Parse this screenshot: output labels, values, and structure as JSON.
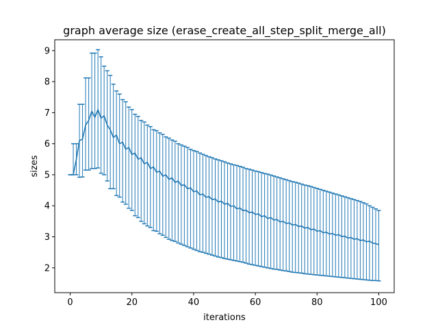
{
  "chart_data": {
    "type": "line",
    "title": "graph average size (erase_create_all_step_split_merge_all)",
    "xlabel": "iterations",
    "ylabel": "sizes",
    "xlim": [
      -5,
      105
    ],
    "ylim": [
      1.2,
      9.35
    ],
    "xticks": [
      0,
      20,
      40,
      60,
      80,
      100
    ],
    "yticks": [
      2,
      3,
      4,
      5,
      6,
      7,
      8,
      9
    ],
    "grid": false,
    "legend": "none",
    "line_color": "#1f77b4",
    "error_bars": "min-max",
    "x": [
      0,
      1,
      2,
      3,
      4,
      5,
      6,
      7,
      8,
      9,
      10,
      11,
      12,
      13,
      14,
      15,
      16,
      17,
      18,
      19,
      20,
      21,
      22,
      23,
      24,
      25,
      26,
      27,
      28,
      29,
      30,
      31,
      32,
      33,
      34,
      35,
      36,
      37,
      38,
      39,
      40,
      41,
      42,
      43,
      44,
      45,
      46,
      47,
      48,
      49,
      50,
      51,
      52,
      53,
      54,
      55,
      56,
      57,
      58,
      59,
      60,
      61,
      62,
      63,
      64,
      65,
      66,
      67,
      68,
      69,
      70,
      71,
      72,
      73,
      74,
      75,
      76,
      77,
      78,
      79,
      80,
      81,
      82,
      83,
      84,
      85,
      86,
      87,
      88,
      89,
      90,
      91,
      92,
      93,
      94,
      95,
      96,
      97,
      98,
      99,
      100
    ],
    "mean": [
      5.0,
      5.0,
      5.5,
      6.1,
      6.15,
      6.6,
      6.75,
      7.05,
      6.85,
      7.1,
      6.82,
      6.9,
      6.6,
      6.45,
      6.2,
      6.28,
      6.0,
      6.05,
      5.82,
      5.88,
      5.65,
      5.7,
      5.5,
      5.55,
      5.35,
      5.4,
      5.2,
      5.25,
      5.08,
      5.12,
      4.95,
      5.0,
      4.85,
      4.9,
      4.75,
      4.8,
      4.65,
      4.68,
      4.55,
      4.58,
      4.45,
      4.48,
      4.35,
      4.38,
      4.27,
      4.3,
      4.2,
      4.22,
      4.12,
      4.15,
      4.05,
      4.08,
      3.98,
      4.0,
      3.9,
      3.93,
      3.84,
      3.86,
      3.78,
      3.8,
      3.72,
      3.74,
      3.65,
      3.68,
      3.59,
      3.62,
      3.54,
      3.56,
      3.48,
      3.5,
      3.43,
      3.45,
      3.38,
      3.4,
      3.33,
      3.35,
      3.28,
      3.3,
      3.23,
      3.25,
      3.18,
      3.2,
      3.13,
      3.15,
      3.09,
      3.11,
      3.05,
      3.07,
      3.01,
      3.02,
      2.96,
      2.98,
      2.92,
      2.94,
      2.88,
      2.9,
      2.84,
      2.86,
      2.8,
      2.78,
      2.75
    ],
    "min": [
      5.0,
      5.0,
      5.0,
      4.92,
      4.93,
      5.15,
      5.15,
      5.2,
      5.2,
      5.22,
      5.05,
      5.0,
      4.8,
      4.55,
      4.55,
      4.33,
      4.28,
      4.12,
      4.05,
      3.92,
      3.85,
      3.68,
      3.62,
      3.5,
      3.42,
      3.35,
      3.3,
      3.2,
      3.18,
      3.1,
      3.05,
      2.98,
      2.92,
      2.88,
      2.85,
      2.8,
      2.76,
      2.72,
      2.68,
      2.64,
      2.6,
      2.56,
      2.52,
      2.5,
      2.47,
      2.44,
      2.41,
      2.38,
      2.35,
      2.33,
      2.3,
      2.28,
      2.26,
      2.24,
      2.22,
      2.2,
      2.18,
      2.15,
      2.12,
      2.1,
      2.08,
      2.06,
      2.04,
      2.02,
      2.0,
      1.98,
      1.96,
      1.95,
      1.93,
      1.91,
      1.9,
      1.88,
      1.86,
      1.85,
      1.84,
      1.83,
      1.81,
      1.8,
      1.79,
      1.78,
      1.77,
      1.76,
      1.75,
      1.74,
      1.73,
      1.72,
      1.71,
      1.7,
      1.69,
      1.68,
      1.67,
      1.66,
      1.65,
      1.64,
      1.63,
      1.62,
      1.61,
      1.6,
      1.59,
      1.59,
      1.58
    ],
    "max": [
      5.0,
      6.0,
      6.0,
      7.27,
      7.27,
      8.12,
      8.12,
      8.92,
      8.92,
      9.03,
      8.8,
      8.5,
      8.35,
      8.2,
      7.92,
      7.7,
      7.6,
      7.42,
      7.35,
      7.18,
      7.1,
      6.95,
      6.88,
      6.75,
      6.7,
      6.6,
      6.55,
      6.45,
      6.42,
      6.35,
      6.3,
      6.22,
      6.18,
      6.12,
      6.08,
      6.0,
      5.96,
      5.92,
      5.88,
      5.82,
      5.78,
      5.75,
      5.7,
      5.66,
      5.62,
      5.58,
      5.55,
      5.51,
      5.48,
      5.45,
      5.42,
      5.38,
      5.35,
      5.32,
      5.3,
      5.27,
      5.24,
      5.2,
      5.18,
      5.15,
      5.12,
      5.1,
      5.07,
      5.04,
      5.02,
      4.99,
      4.96,
      4.93,
      4.9,
      4.87,
      4.84,
      4.81,
      4.78,
      4.76,
      4.73,
      4.7,
      4.67,
      4.65,
      4.62,
      4.59,
      4.56,
      4.53,
      4.5,
      4.47,
      4.44,
      4.41,
      4.38,
      4.35,
      4.32,
      4.29,
      4.26,
      4.23,
      4.2,
      4.17,
      4.14,
      4.1,
      4.06,
      4.0,
      3.95,
      3.9,
      3.85
    ]
  }
}
